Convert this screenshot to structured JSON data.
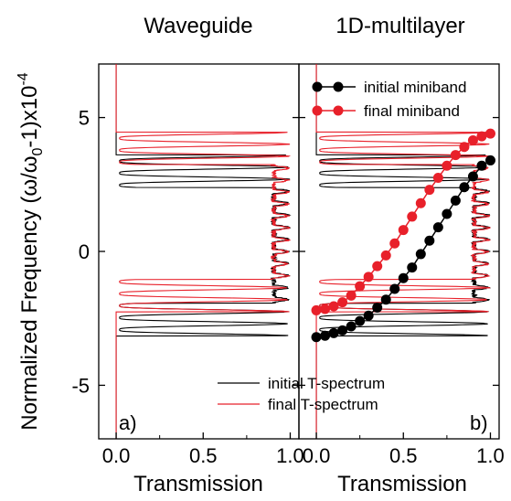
{
  "chart_data": [
    {
      "type": "line",
      "panel_label": "a)",
      "title": "Waveguide",
      "xlabel": "Transmission",
      "ylabel": "Normalized Frequency  (ω/ω",
      "ylabel_sub": "0",
      "ylabel_tail": "-1)x10",
      "ylabel_sup": "-4",
      "xlim": [
        -0.1,
        1.05
      ],
      "ylim": [
        -7,
        7
      ],
      "xticks": [
        0.0,
        0.5,
        1.0
      ],
      "xtick_labels": [
        "0.0",
        "0.5",
        "1.0"
      ],
      "yticks": [
        -5,
        0,
        5
      ],
      "ytick_labels": [
        "-5",
        "0",
        "5"
      ],
      "legend": {
        "position": "bottom-right",
        "entries": [
          {
            "label": "initial T-spectrum",
            "color": "#000000"
          },
          {
            "label": "final T-spectrum",
            "color": "#e8202a"
          }
        ]
      },
      "series": [
        {
          "name": "initial T-spectrum",
          "color": "#000000",
          "band": [
            -3.15,
            3.6
          ]
        },
        {
          "name": "final T-spectrum",
          "color": "#e8202a",
          "band": [
            -2.25,
            4.45
          ]
        }
      ]
    },
    {
      "type": "line",
      "panel_label": "b)",
      "title": "1D-multilayer",
      "xlabel": "Transmission",
      "xlim": [
        -0.1,
        1.05
      ],
      "ylim": [
        -7,
        7
      ],
      "xticks": [
        0.0,
        0.5,
        1.0
      ],
      "xtick_labels": [
        "0.0",
        "0.5",
        "1.0"
      ],
      "yticks": [
        -5,
        0,
        5
      ],
      "legend": {
        "position": "top-right",
        "entries": [
          {
            "label": "initial miniband",
            "color": "#000000"
          },
          {
            "label": "final miniband",
            "color": "#e8202a"
          }
        ]
      },
      "series": [
        {
          "name": "initial T-spectrum",
          "color": "#000000",
          "band": [
            -3.15,
            3.6
          ]
        },
        {
          "name": "final T-spectrum",
          "color": "#e8202a",
          "band": [
            -2.25,
            4.45
          ]
        },
        {
          "name": "initial miniband",
          "color": "#000000",
          "x": [
            0.0,
            0.05,
            0.1,
            0.15,
            0.2,
            0.25,
            0.3,
            0.35,
            0.4,
            0.45,
            0.5,
            0.55,
            0.6,
            0.65,
            0.7,
            0.75,
            0.8,
            0.85,
            0.9,
            0.95,
            1.0
          ],
          "y": [
            -3.2,
            -3.15,
            -3.05,
            -2.95,
            -2.8,
            -2.6,
            -2.4,
            -2.1,
            -1.8,
            -1.4,
            -1.0,
            -0.6,
            -0.1,
            0.4,
            0.9,
            1.4,
            1.9,
            2.4,
            2.8,
            3.2,
            3.4
          ]
        },
        {
          "name": "final miniband",
          "color": "#e8202a",
          "x": [
            0.0,
            0.05,
            0.1,
            0.15,
            0.2,
            0.25,
            0.3,
            0.35,
            0.4,
            0.45,
            0.5,
            0.55,
            0.6,
            0.65,
            0.7,
            0.75,
            0.8,
            0.85,
            0.9,
            0.95,
            1.0
          ],
          "y": [
            -2.2,
            -2.15,
            -2.05,
            -1.9,
            -1.65,
            -1.3,
            -0.95,
            -0.55,
            -0.15,
            0.3,
            0.8,
            1.3,
            1.8,
            2.3,
            2.75,
            3.2,
            3.6,
            3.9,
            4.15,
            4.3,
            4.4
          ]
        }
      ]
    }
  ]
}
